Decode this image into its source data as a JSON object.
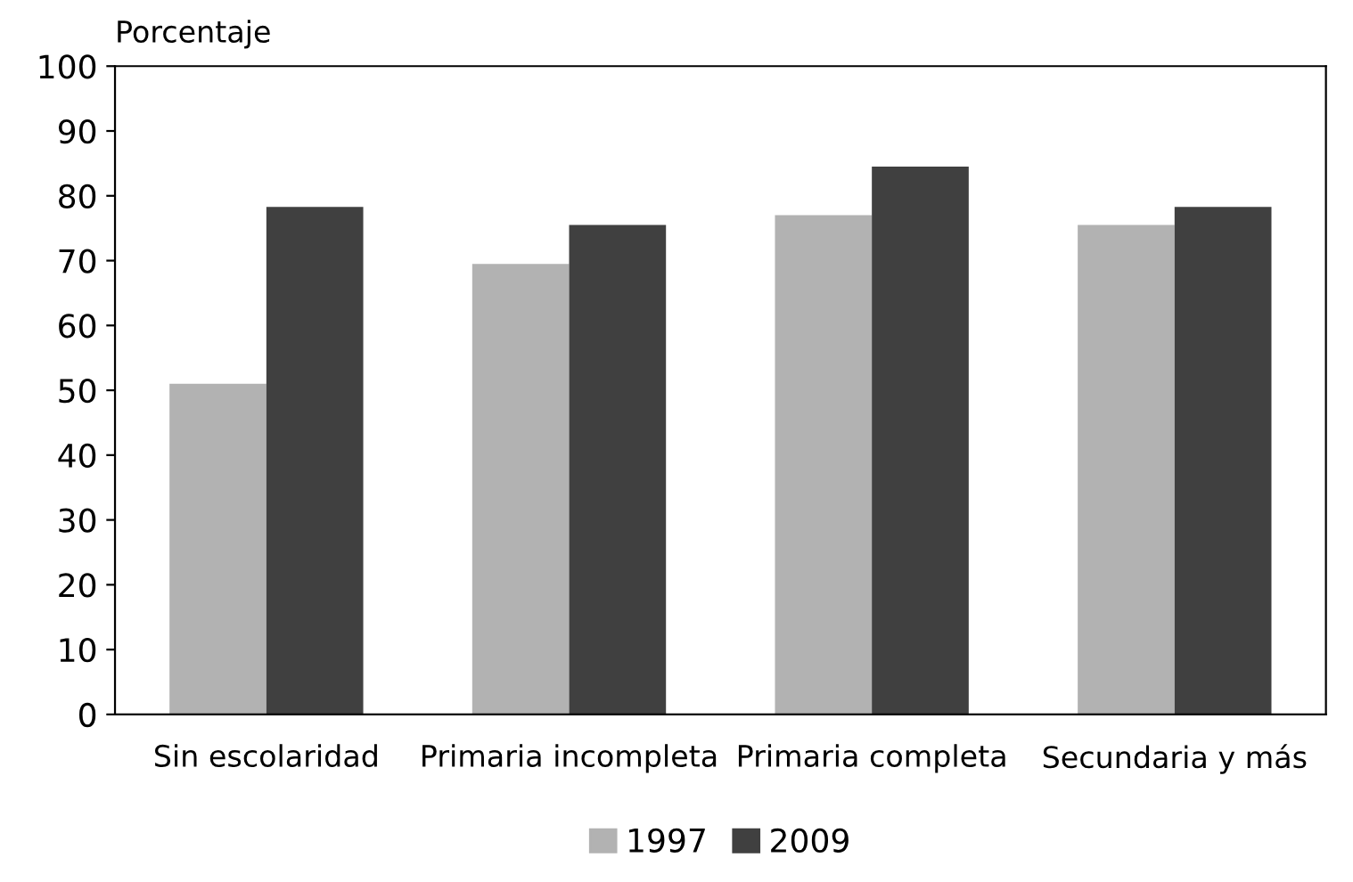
{
  "chart_data": {
    "type": "bar",
    "ylabel": "Porcentaje",
    "categories": [
      "Sin escolaridad",
      "Primaria incompleta",
      "Primaria completa",
      "Secundaria y más"
    ],
    "series": [
      {
        "name": "1997",
        "color": "#b2b2b2",
        "values": [
          51,
          69.5,
          77,
          75.5
        ]
      },
      {
        "name": "2009",
        "color": "#404040",
        "values": [
          78.3,
          75.5,
          84.5,
          78.3
        ]
      }
    ],
    "ylim": [
      0,
      100
    ],
    "yticks": [
      0,
      10,
      20,
      30,
      40,
      50,
      60,
      70,
      80,
      90,
      100
    ],
    "grid": false,
    "legend": "bottom"
  }
}
